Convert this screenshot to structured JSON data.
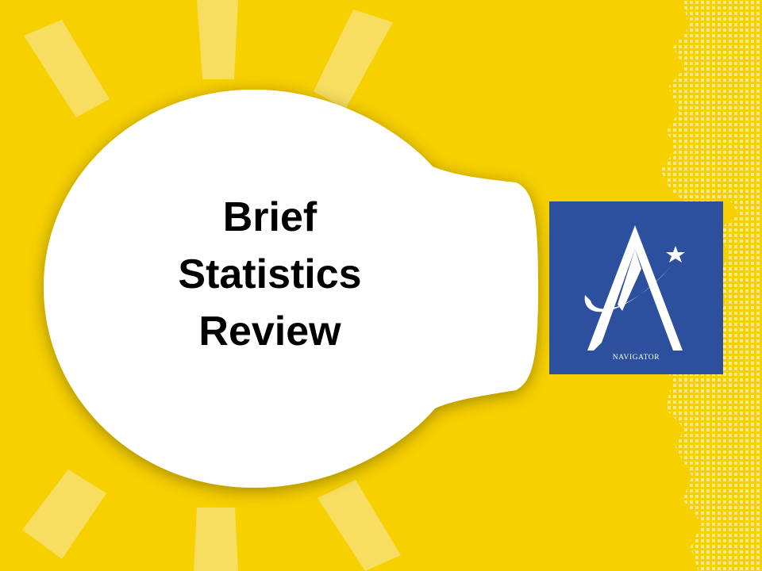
{
  "slide": {
    "title_lines": [
      "Brief",
      "Statistics",
      "Review"
    ]
  },
  "logo": {
    "caption": "NAVIGATOR",
    "icon": "navigator-a-star-icon"
  },
  "decorations": {
    "bulb_icon": "light-bulb-icon",
    "rays_icon": "light-rays-icon",
    "map_icon": "dotted-world-map-icon"
  },
  "colors": {
    "background": "#f7d000",
    "bulb": "#ffffff",
    "ray": "#f6df6a",
    "logo_background": "#2c4f9e",
    "title_text": "#000000"
  }
}
